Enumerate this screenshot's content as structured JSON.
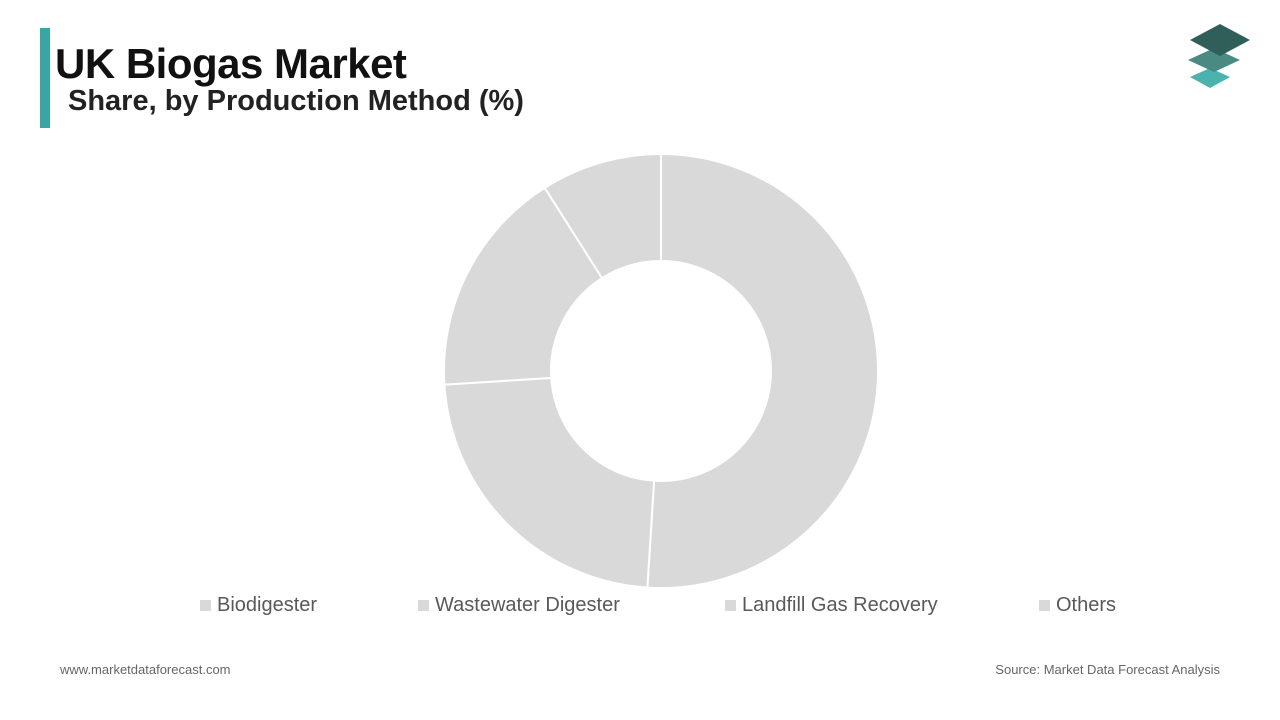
{
  "header": {
    "title": "UK Biogas Market",
    "subtitle": "Share, by Production Method (%)"
  },
  "logo": {
    "icon": "stacked-layers-logo",
    "colors": [
      "#2f5f58",
      "#4a8a83",
      "#4ab3ad"
    ]
  },
  "chart_data": {
    "type": "pie",
    "donut": true,
    "categories": [
      "Biodigester",
      "Wastewater Digester",
      "Landfill Gas Recovery",
      "Others"
    ],
    "values": [
      51,
      23,
      17,
      9
    ],
    "colors": [
      "#d9d9d9",
      "#d9d9d9",
      "#d9d9d9",
      "#d9d9d9"
    ],
    "legend_position": "bottom"
  },
  "footer": {
    "website": "www.marketdataforecast.com",
    "source": "Source: Market Data Forecast Analysis"
  }
}
